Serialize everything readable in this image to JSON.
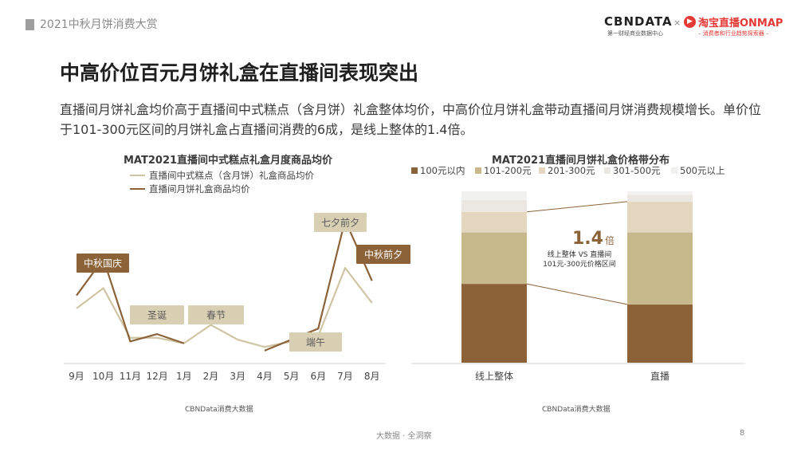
{
  "header": {
    "report_title": "2021中秋月饼消费大赏"
  },
  "logos": {
    "cbn": "CBNDATA",
    "cbn_sub": "第一财经商业数据中心",
    "times": "×",
    "taobao": "淘宝直播ONMAP",
    "taobao_sub": "– 消费者和行业趋势探索器 –"
  },
  "page": {
    "title": "中高价位百元月饼礼盒在直播间表现突出",
    "description": "直播间月饼礼盒均价高于直播间中式糕点（含月饼）礼盒整体均价，中高价位月饼礼盒带动直播间月饼消费规模增长。单价位于101-300元区间的月饼礼盒占直播间消费的6成，是线上整体的1.4倍。"
  },
  "colors": {
    "dark": "#8c6239",
    "light": "#cfc5a5",
    "tan": "#c8b98c",
    "cream": "#e5d6bf",
    "pale": "#ebe8e3",
    "grey": "#f1f1ef"
  },
  "chart_data": [
    {
      "type": "line",
      "title": "MAT2021直播间中式糕点礼盒月度商品均价",
      "categories": [
        "9月",
        "10月",
        "11月",
        "12月",
        "1月",
        "2月",
        "3月",
        "4月",
        "5月",
        "6月",
        "7月",
        "8月"
      ],
      "series": [
        {
          "name": "直播间中式糕点（含月饼）礼盒商品均价",
          "color": "#cfc5a5",
          "values": [
            55,
            66,
            39,
            39,
            36,
            46,
            38,
            34,
            37,
            40,
            77,
            58
          ]
        },
        {
          "name": "直播间月饼礼盒商品均价",
          "color": "#8c6239",
          "values": [
            62,
            82,
            37,
            41,
            36,
            null,
            null,
            32,
            38,
            44,
            103,
            70
          ]
        }
      ],
      "ylim": [
        25,
        110
      ],
      "legend": "top-left",
      "annotations": [
        {
          "text": "中秋国庆",
          "at": "10月",
          "style": "dark"
        },
        {
          "text": "圣诞",
          "at": "12月",
          "style": "light"
        },
        {
          "text": "春节",
          "at": "2月",
          "style": "light"
        },
        {
          "text": "端午",
          "at": "6月",
          "style": "light"
        },
        {
          "text": "七夕前夕",
          "at": "7月",
          "style": "light"
        },
        {
          "text": "中秋前夕",
          "at": "8月",
          "style": "dark"
        }
      ],
      "source": "CBNData消费大数据"
    },
    {
      "type": "bar",
      "stacked": true,
      "percent": true,
      "title": "MAT2021直播间月饼礼盒价格带分布",
      "categories": [
        "线上整体",
        "直播"
      ],
      "series": [
        {
          "name": "100元以内",
          "color": "#8c6239",
          "values": [
            46,
            34
          ]
        },
        {
          "name": "101-200元",
          "color": "#c8b98c",
          "values": [
            30,
            42
          ]
        },
        {
          "name": "201-300元",
          "color": "#e5d6bf",
          "values": [
            12,
            18
          ]
        },
        {
          "name": "301-500元",
          "color": "#ebe8e3",
          "values": [
            7,
            4
          ]
        },
        {
          "name": "500元以上",
          "color": "#f1f1ef",
          "values": [
            5,
            2
          ]
        }
      ],
      "ylim": [
        0,
        100
      ],
      "legend": "top",
      "callout": {
        "value": "1.4",
        "unit": "倍",
        "line1": "线上整体 VS 直播间",
        "line2": "101元-300元价格区间"
      },
      "source": "CBNData消费大数据"
    }
  ],
  "footer": {
    "text": "大数据 · 全洞察",
    "page_number": "8"
  }
}
